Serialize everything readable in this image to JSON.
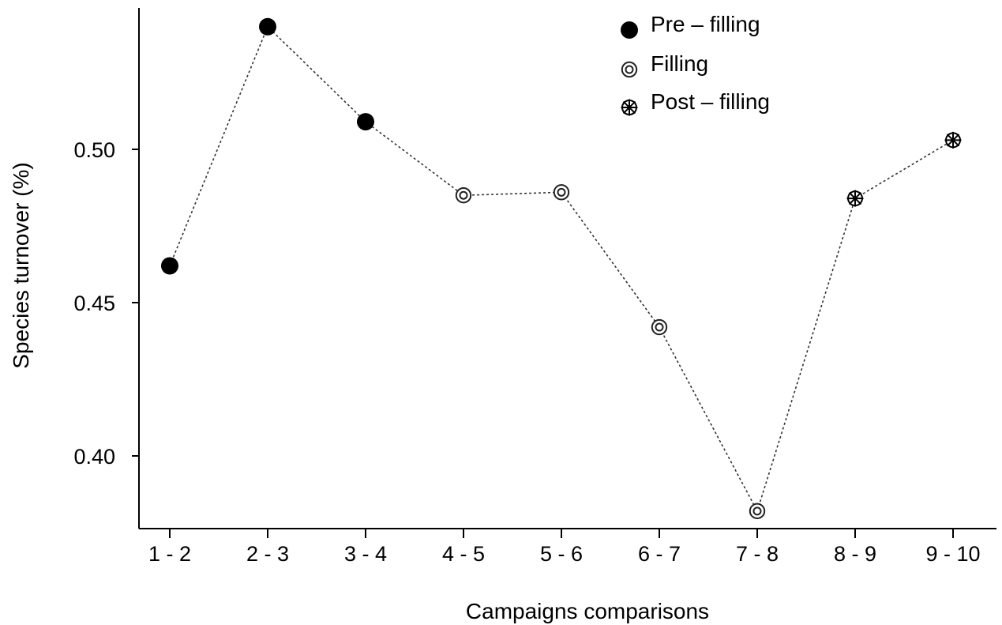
{
  "chart_data": {
    "type": "scatter",
    "xlabel": "Campaigns comparisons",
    "ylabel": "Species turnover (%)",
    "categories": [
      "1 - 2",
      "2 - 3",
      "3 - 4",
      "4 - 5",
      "5 - 6",
      "6 - 7",
      "7 - 8",
      "8 - 9",
      "9 - 10"
    ],
    "values": [
      0.462,
      0.54,
      0.509,
      0.485,
      0.486,
      0.442,
      0.382,
      0.484,
      0.503
    ],
    "phases": [
      "pre",
      "pre",
      "pre",
      "filling",
      "filling",
      "filling",
      "filling",
      "post",
      "post"
    ],
    "yticks": [
      0.4,
      0.45,
      0.5
    ],
    "ytick_labels": [
      "0.40",
      "0.45",
      "0.50"
    ],
    "ylim": [
      0.377,
      0.548
    ],
    "connector": "dotted",
    "legend_position": "top-right",
    "legend": [
      {
        "key": "pre",
        "label": "Pre – filling",
        "marker": "filled-circle"
      },
      {
        "key": "filling",
        "label": "Filling",
        "marker": "double-ring"
      },
      {
        "key": "post",
        "label": "Post – filling",
        "marker": "asterisk-circle"
      }
    ],
    "colors": {
      "marker": "#000000",
      "line": "#333333"
    }
  }
}
